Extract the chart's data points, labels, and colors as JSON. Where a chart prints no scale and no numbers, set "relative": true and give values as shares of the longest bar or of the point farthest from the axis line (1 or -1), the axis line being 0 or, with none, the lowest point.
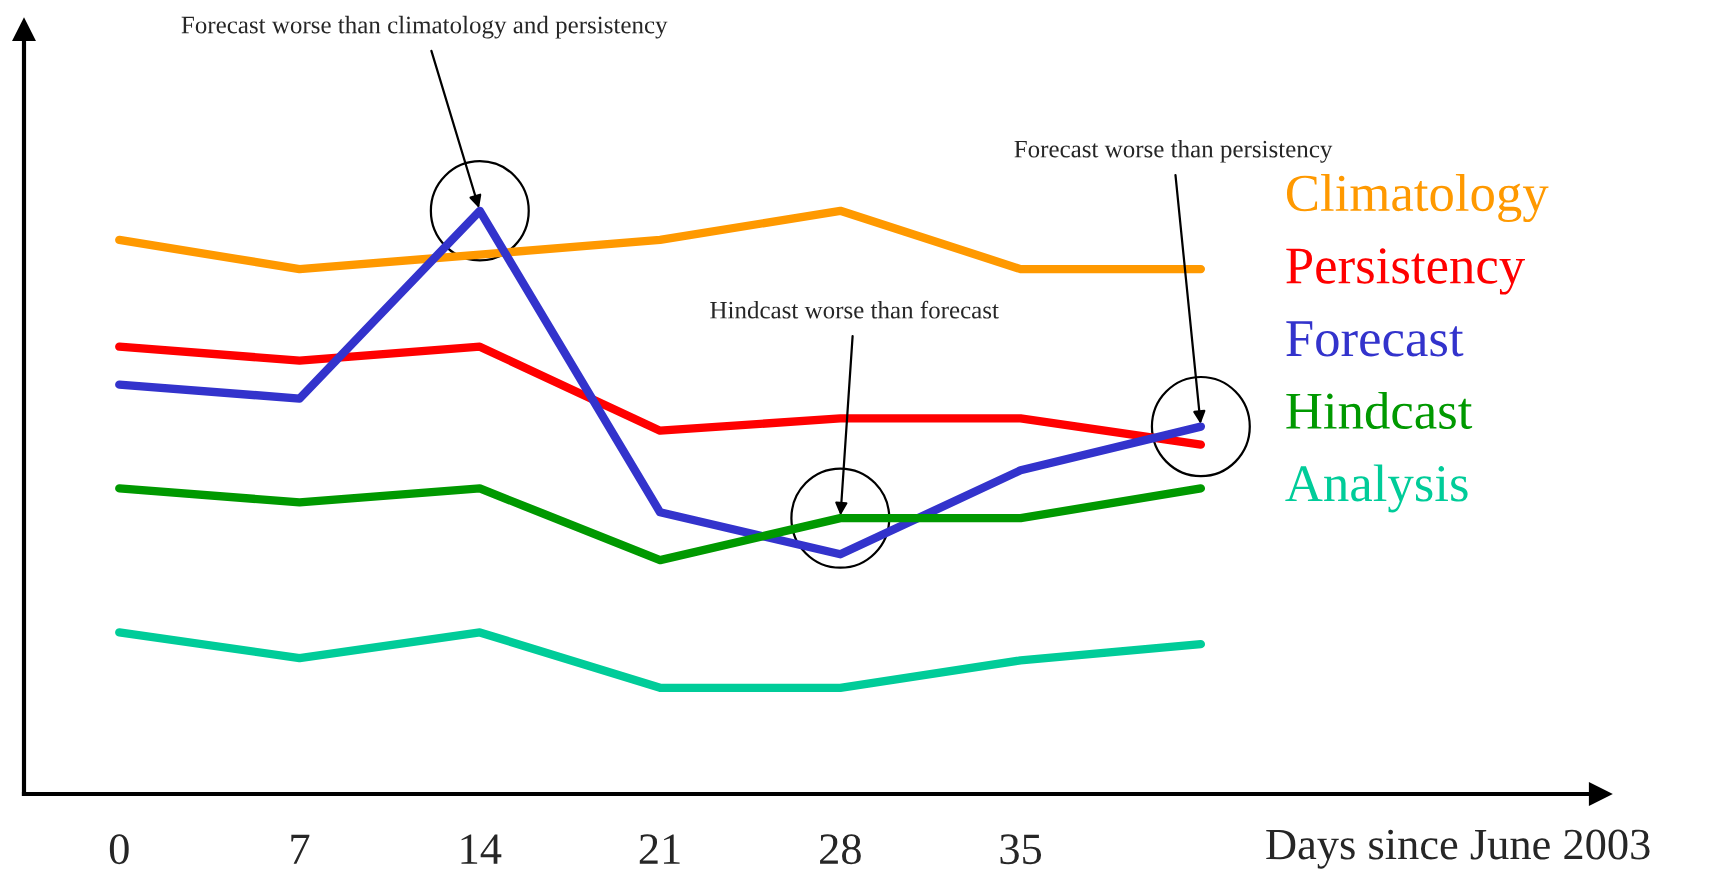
{
  "chart_data": {
    "type": "line",
    "relative": true,
    "xlabel": "Days since June 2003",
    "x": [
      0,
      7,
      14,
      21,
      28,
      35,
      42
    ],
    "xlim": [
      -3.7,
      57.5
    ],
    "xticks": [
      0,
      7,
      14,
      21,
      28,
      35
    ],
    "tick_labels": "x",
    "grid": false,
    "legend": "right",
    "marker": "none",
    "line_style": "solid",
    "series": [
      {
        "name": "Climatology",
        "color": "#ff9900",
        "values": [
          0.95,
          0.9,
          0.925,
          0.95,
          1.0,
          0.9,
          0.9
        ]
      },
      {
        "name": "Persistency",
        "color": "#ff0000",
        "values": [
          0.767,
          0.743,
          0.767,
          0.623,
          0.644,
          0.644,
          0.599
        ]
      },
      {
        "name": "Forecast",
        "color": "#3333cc",
        "values": [
          0.702,
          0.678,
          1.0,
          0.483,
          0.411,
          0.555,
          0.63
        ]
      },
      {
        "name": "Hindcast",
        "color": "#009900",
        "values": [
          0.524,
          0.5,
          0.524,
          0.401,
          0.473,
          0.473,
          0.524
        ]
      },
      {
        "name": "Analysis",
        "color": "#00cc99",
        "values": [
          0.277,
          0.233,
          0.277,
          0.182,
          0.182,
          0.229,
          0.257
        ]
      }
    ],
    "annotations": [
      {
        "text": "Forecast worse than climatology and persistency",
        "x": 14,
        "y": 1.0
      },
      {
        "text": "Hindcast worse than forecast",
        "x": 28,
        "y": 0.473
      },
      {
        "text": "Forecast worse than persistency",
        "x": 42,
        "y": 0.63
      }
    ]
  }
}
